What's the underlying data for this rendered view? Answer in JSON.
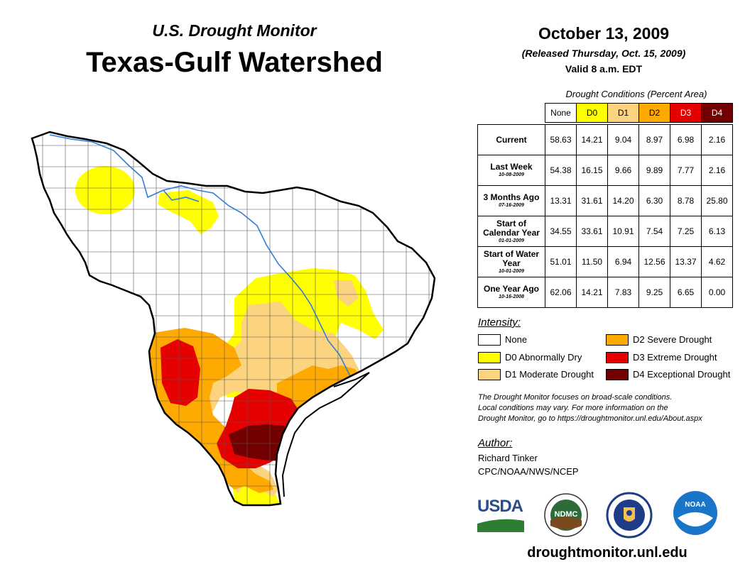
{
  "header": {
    "super_title": "U.S. Drought Monitor",
    "region_title": "Texas-Gulf Watershed",
    "date": "October 13, 2009",
    "released": "(Released Thursday, Oct. 15, 2009)",
    "valid": "Valid 8 a.m. EDT"
  },
  "table": {
    "caption": "Drought Conditions (Percent Area)",
    "columns": [
      "None",
      "D0",
      "D1",
      "D2",
      "D3",
      "D4"
    ],
    "rows": [
      {
        "label": "Current",
        "sublabel": "",
        "values": [
          "58.63",
          "14.21",
          "9.04",
          "8.97",
          "6.98",
          "2.16"
        ]
      },
      {
        "label": "Last Week",
        "sublabel": "10-08-2009",
        "values": [
          "54.38",
          "16.15",
          "9.66",
          "9.89",
          "7.77",
          "2.16"
        ]
      },
      {
        "label": "3 Months Ago",
        "sublabel": "07-16-2009",
        "values": [
          "13.31",
          "31.61",
          "14.20",
          "6.30",
          "8.78",
          "25.80"
        ]
      },
      {
        "label": "Start of Calendar Year",
        "sublabel": "01-01-2009",
        "values": [
          "34.55",
          "33.61",
          "10.91",
          "7.54",
          "7.25",
          "6.13"
        ]
      },
      {
        "label": "Start of Water Year",
        "sublabel": "10-01-2009",
        "values": [
          "51.01",
          "11.50",
          "6.94",
          "12.56",
          "13.37",
          "4.62"
        ]
      },
      {
        "label": "One Year Ago",
        "sublabel": "10-16-2008",
        "values": [
          "62.06",
          "14.21",
          "7.83",
          "9.25",
          "6.65",
          "0.00"
        ]
      }
    ]
  },
  "legend": {
    "title": "Intensity:",
    "items": [
      {
        "label": "None",
        "color": "#ffffff"
      },
      {
        "label": "D0 Abnormally Dry",
        "color": "#ffff00"
      },
      {
        "label": "D1 Moderate Drought",
        "color": "#fcd37f"
      },
      {
        "label": "D2 Severe Drought",
        "color": "#ffaa00"
      },
      {
        "label": "D3 Extreme Drought",
        "color": "#e60000"
      },
      {
        "label": "D4 Exceptional Drought",
        "color": "#730000"
      }
    ]
  },
  "note": {
    "line1": "The Drought Monitor focuses on broad-scale conditions.",
    "line2": "Local conditions may vary. For more information on the",
    "line3": "Drought Monitor, go to https://droughtmonitor.unl.edu/About.aspx"
  },
  "author": {
    "title": "Author:",
    "name": "Richard Tinker",
    "org": "CPC/NOAA/NWS/NCEP"
  },
  "logos": {
    "usda": "USDA",
    "ndmc": "NDMC",
    "noaa": "NOAA"
  },
  "website": "droughtmonitor.unl.edu"
}
